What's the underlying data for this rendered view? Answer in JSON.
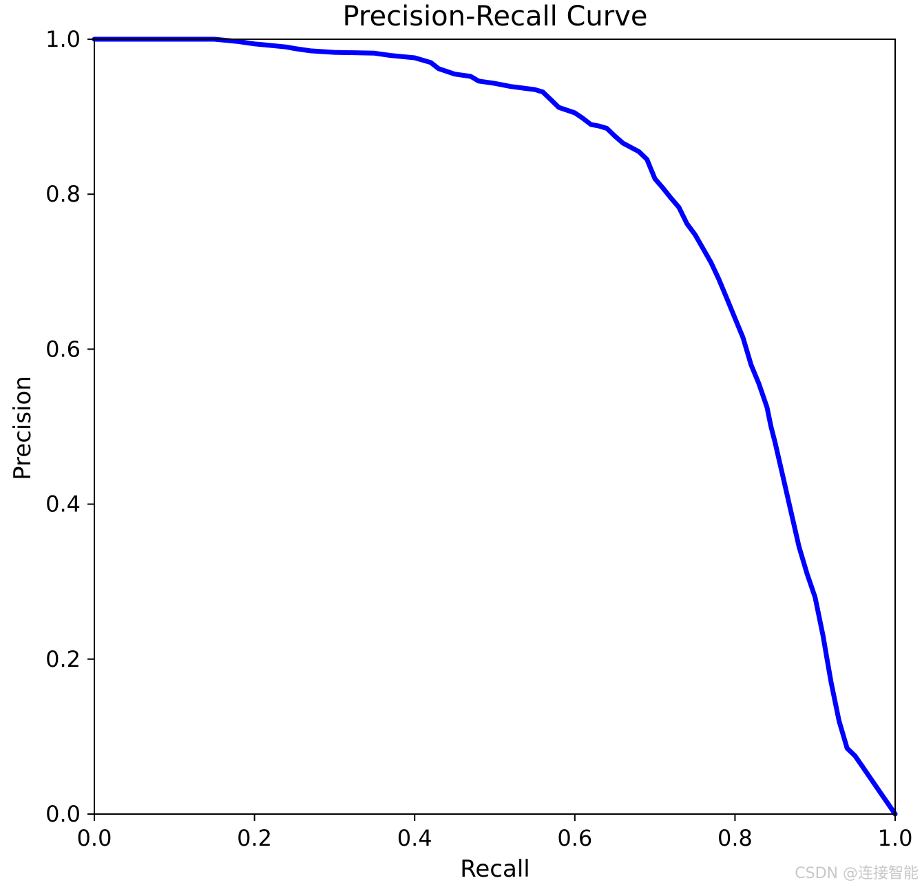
{
  "chart_data": {
    "type": "line",
    "title": "Precision-Recall Curve",
    "xlabel": "Recall",
    "ylabel": "Precision",
    "xlim": [
      0,
      1
    ],
    "ylim": [
      0,
      1
    ],
    "xticks": [
      "0.0",
      "0.2",
      "0.4",
      "0.6",
      "0.8",
      "1.0"
    ],
    "yticks": [
      "0.0",
      "0.2",
      "0.4",
      "0.6",
      "0.8",
      "1.0"
    ],
    "grid": false,
    "series": [
      {
        "color": "#0000ff",
        "x": [
          0.0,
          0.05,
          0.1,
          0.15,
          0.16,
          0.18,
          0.2,
          0.21,
          0.24,
          0.25,
          0.27,
          0.3,
          0.35,
          0.37,
          0.4,
          0.42,
          0.43,
          0.45,
          0.47,
          0.48,
          0.5,
          0.52,
          0.55,
          0.56,
          0.57,
          0.58,
          0.6,
          0.61,
          0.62,
          0.63,
          0.64,
          0.65,
          0.66,
          0.68,
          0.69,
          0.7,
          0.71,
          0.72,
          0.73,
          0.74,
          0.75,
          0.76,
          0.77,
          0.78,
          0.79,
          0.8,
          0.81,
          0.82,
          0.83,
          0.84,
          0.845,
          0.85,
          0.86,
          0.87,
          0.88,
          0.89,
          0.9,
          0.91,
          0.915,
          0.92,
          0.93,
          0.94,
          0.95,
          0.96,
          0.97,
          0.98,
          0.99,
          1.0
        ],
        "y": [
          1.0,
          1.0,
          1.0,
          1.0,
          0.999,
          0.997,
          0.994,
          0.993,
          0.99,
          0.988,
          0.985,
          0.983,
          0.982,
          0.979,
          0.976,
          0.97,
          0.962,
          0.955,
          0.952,
          0.946,
          0.943,
          0.939,
          0.935,
          0.932,
          0.922,
          0.912,
          0.905,
          0.898,
          0.89,
          0.888,
          0.885,
          0.875,
          0.866,
          0.855,
          0.845,
          0.82,
          0.808,
          0.795,
          0.783,
          0.762,
          0.748,
          0.73,
          0.712,
          0.69,
          0.665,
          0.64,
          0.615,
          0.58,
          0.555,
          0.525,
          0.5,
          0.48,
          0.435,
          0.39,
          0.345,
          0.31,
          0.28,
          0.23,
          0.2,
          0.17,
          0.12,
          0.085,
          0.075,
          0.06,
          0.045,
          0.03,
          0.015,
          0.0
        ]
      }
    ]
  },
  "watermark": "CSDN @连接智能"
}
